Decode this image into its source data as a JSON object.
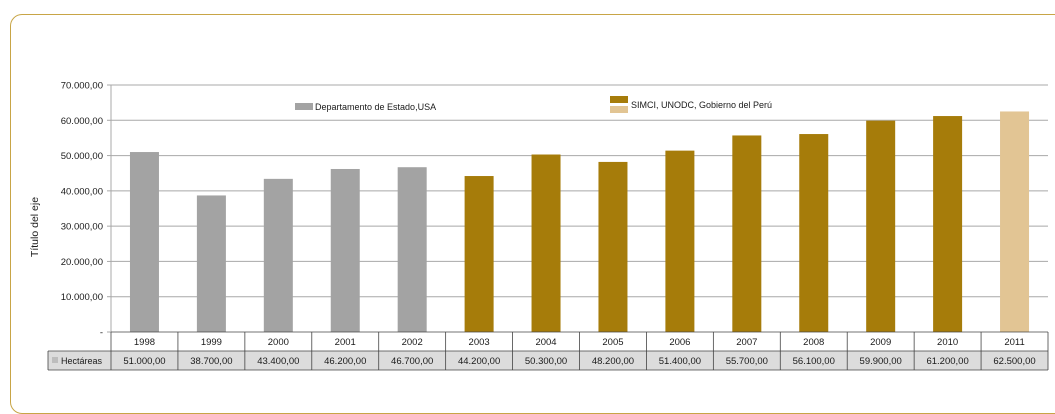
{
  "chart_data": {
    "type": "bar",
    "title": "",
    "ylabel": "Título del eje",
    "xlabel": "",
    "ylim": [
      0,
      70000
    ],
    "y_ticks": [
      "-",
      "10.000,00",
      "20.000,00",
      "30.000,00",
      "40.000,00",
      "50.000,00",
      "60.000,00",
      "70.000,00"
    ],
    "grid": true,
    "categories": [
      "1998",
      "1999",
      "2000",
      "2001",
      "2002",
      "2003",
      "2004",
      "2005",
      "2006",
      "2007",
      "2008",
      "2009",
      "2010",
      "2011"
    ],
    "values": [
      51000,
      38700,
      43400,
      46200,
      46700,
      44200,
      50300,
      48200,
      51400,
      55700,
      56100,
      59900,
      61200,
      62500
    ],
    "value_labels": [
      "51.000,00",
      "38.700,00",
      "43.400,00",
      "46.200,00",
      "46.700,00",
      "44.200,00",
      "50.300,00",
      "48.200,00",
      "51.400,00",
      "55.700,00",
      "56.100,00",
      "59.900,00",
      "61.200,00",
      "62.500,00"
    ],
    "bar_colors": [
      "#a3a3a3",
      "#a3a3a3",
      "#a3a3a3",
      "#a3a3a3",
      "#a3a3a3",
      "#a67c0a",
      "#a67c0a",
      "#a67c0a",
      "#a67c0a",
      "#a67c0a",
      "#a67c0a",
      "#a67c0a",
      "#a67c0a",
      "#e2c594"
    ],
    "data_table": {
      "row_label": "Hectáreas",
      "marker_color": "#bdbdbd"
    },
    "legend": [
      {
        "label": "Departamento de Estado,USA",
        "color": "#a3a3a3"
      },
      {
        "label": "SIMCI, UNODC, Gobierno del Perú",
        "colors": [
          "#a67c0a",
          "#e2c594"
        ]
      }
    ]
  },
  "colors": {
    "frame_border": "#c8a546",
    "gridline": "#a8a8a8",
    "table_cell_bg": "#dcdcdc"
  }
}
